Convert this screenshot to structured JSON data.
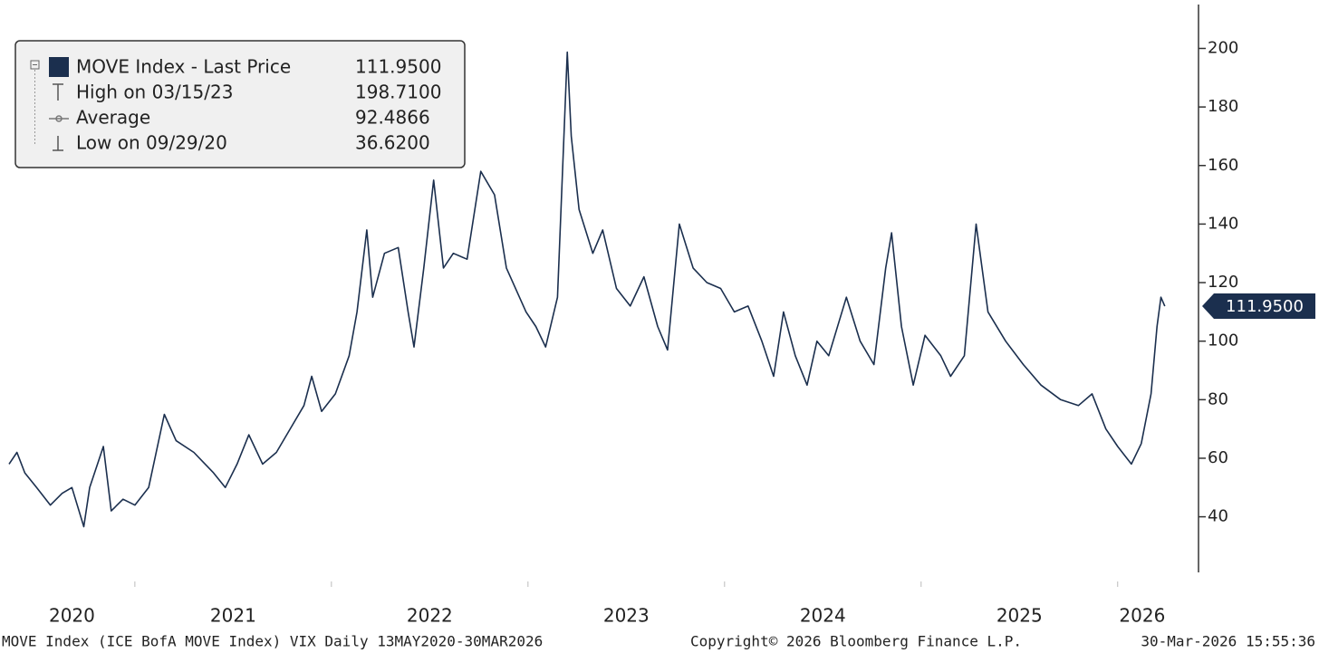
{
  "chart_data": {
    "type": "line",
    "legend": [
      {
        "label": "MOVE Index - Last Price",
        "value": "111.9500"
      },
      {
        "label": "High on 03/15/23",
        "value": "198.7100"
      },
      {
        "label": "Average",
        "value": "92.4866"
      },
      {
        "label": "Low on 09/29/20",
        "value": "36.6200"
      }
    ],
    "footer": {
      "source": "MOVE Index (ICE BofA MOVE Index) VIX Daily 13MAY2020-30MAR2026",
      "copyright": "Copyright© 2026 Bloomberg Finance L.P.",
      "timestamp": "30-Mar-2026 15:55:36"
    },
    "xlim": [
      2020.36,
      2026.25
    ],
    "xticks": [
      2020,
      2021,
      2022,
      2023,
      2024,
      2025,
      2026
    ],
    "ylim": [
      21,
      215
    ],
    "yticks": [
      40,
      60,
      80,
      100,
      120,
      140,
      160,
      180,
      200
    ],
    "series": [
      {
        "name": "MOVE Index - Last Price",
        "color": "#1b2f4e",
        "x": [
          2020.36,
          2020.4,
          2020.44,
          2020.5,
          2020.57,
          2020.63,
          2020.68,
          2020.74,
          2020.77,
          2020.84,
          2020.88,
          2020.94,
          2021.0,
          2021.07,
          2021.15,
          2021.21,
          2021.3,
          2021.4,
          2021.46,
          2021.52,
          2021.58,
          2021.65,
          2021.72,
          2021.79,
          2021.86,
          2021.9,
          2021.95,
          2022.02,
          2022.09,
          2022.13,
          2022.18,
          2022.21,
          2022.27,
          2022.34,
          2022.39,
          2022.42,
          2022.47,
          2022.52,
          2022.57,
          2022.62,
          2022.69,
          2022.76,
          2022.83,
          2022.89,
          2022.99,
          2023.04,
          2023.09,
          2023.15,
          2023.2,
          2023.22,
          2023.26,
          2023.33,
          2023.38,
          2023.45,
          2023.52,
          2023.59,
          2023.66,
          2023.71,
          2023.77,
          2023.84,
          2023.91,
          2023.98,
          2024.05,
          2024.12,
          2024.19,
          2024.25,
          2024.3,
          2024.36,
          2024.42,
          2024.47,
          2024.53,
          2024.62,
          2024.69,
          2024.76,
          2024.82,
          2024.85,
          2024.9,
          2024.96,
          2025.02,
          2025.1,
          2025.15,
          2025.22,
          2025.28,
          2025.34,
          2025.43,
          2025.52,
          2025.61,
          2025.71,
          2025.8,
          2025.87,
          2025.94,
          2026.0,
          2026.07,
          2026.12,
          2026.17,
          2026.2,
          2026.22,
          2026.24
        ],
        "values": [
          58,
          62,
          55,
          50,
          44,
          48,
          50,
          36.62,
          50,
          64,
          42,
          46,
          44,
          50,
          75,
          66,
          62,
          55,
          50,
          58,
          68,
          58,
          62,
          70,
          78,
          88,
          76,
          82,
          95,
          110,
          138,
          115,
          130,
          132,
          110,
          98,
          125,
          155,
          125,
          130,
          128,
          158,
          150,
          125,
          110,
          105,
          98,
          115,
          198.71,
          170,
          145,
          130,
          138,
          118,
          112,
          122,
          105,
          97,
          140,
          125,
          120,
          118,
          110,
          112,
          100,
          88,
          110,
          95,
          85,
          100,
          95,
          115,
          100,
          92,
          125,
          137,
          105,
          85,
          102,
          95,
          88,
          95,
          140,
          110,
          100,
          92,
          85,
          80,
          78,
          82,
          70,
          64,
          58,
          65,
          82,
          105,
          115,
          111.95
        ]
      }
    ]
  }
}
